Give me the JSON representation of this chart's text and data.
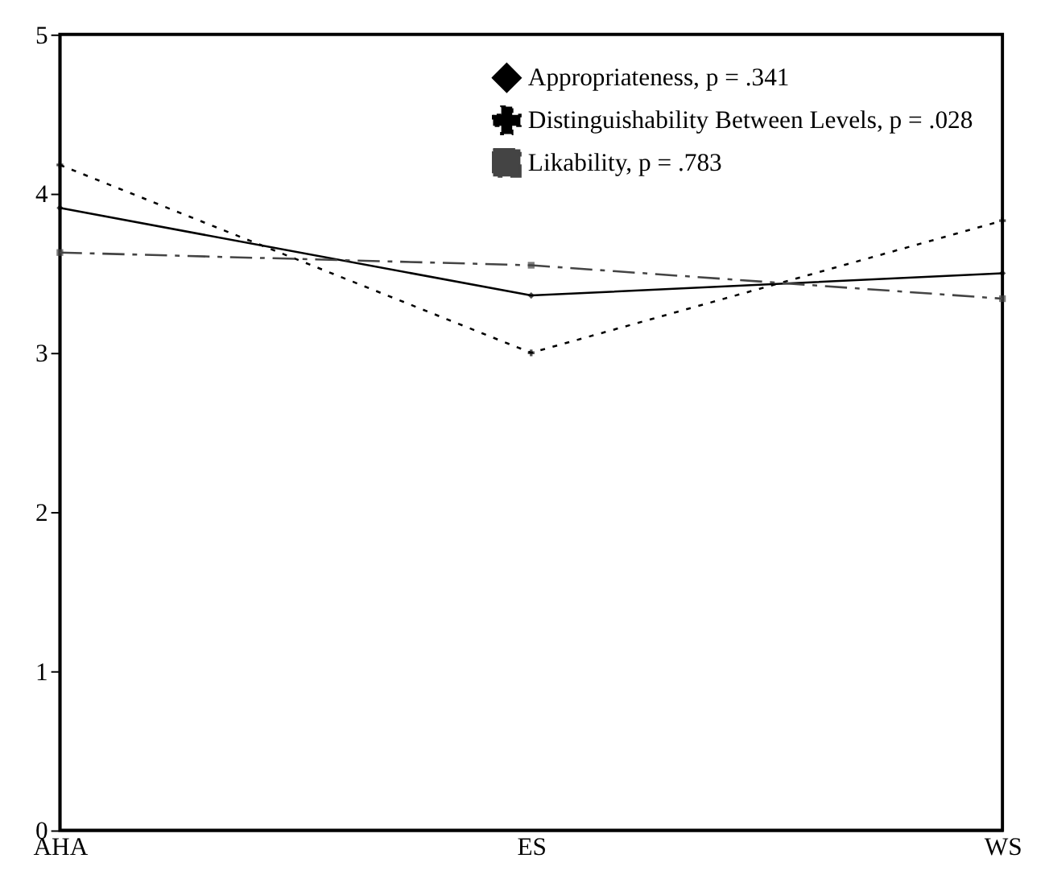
{
  "chart_data": {
    "type": "line",
    "categories": [
      "AHA",
      "ES",
      "WS"
    ],
    "series": [
      {
        "name": "Appropriateness, p = .341",
        "color": "#000000",
        "line_style": "solid",
        "marker": "diamond",
        "values": [
          3.91,
          3.36,
          3.5
        ]
      },
      {
        "name": "Distinguishability Between Levels, p = .028",
        "color": "#000000",
        "line_style": "dotted",
        "marker": "cross",
        "values": [
          4.18,
          3.0,
          3.83
        ]
      },
      {
        "name": "Likability, p = .783",
        "color": "#444444",
        "line_style": "dashed",
        "marker": "square",
        "values": [
          3.63,
          3.55,
          3.34
        ]
      }
    ],
    "ylim": [
      0,
      5
    ],
    "yticks": [
      0,
      1,
      2,
      3,
      4,
      5
    ],
    "grid": false,
    "legend": "top right"
  }
}
